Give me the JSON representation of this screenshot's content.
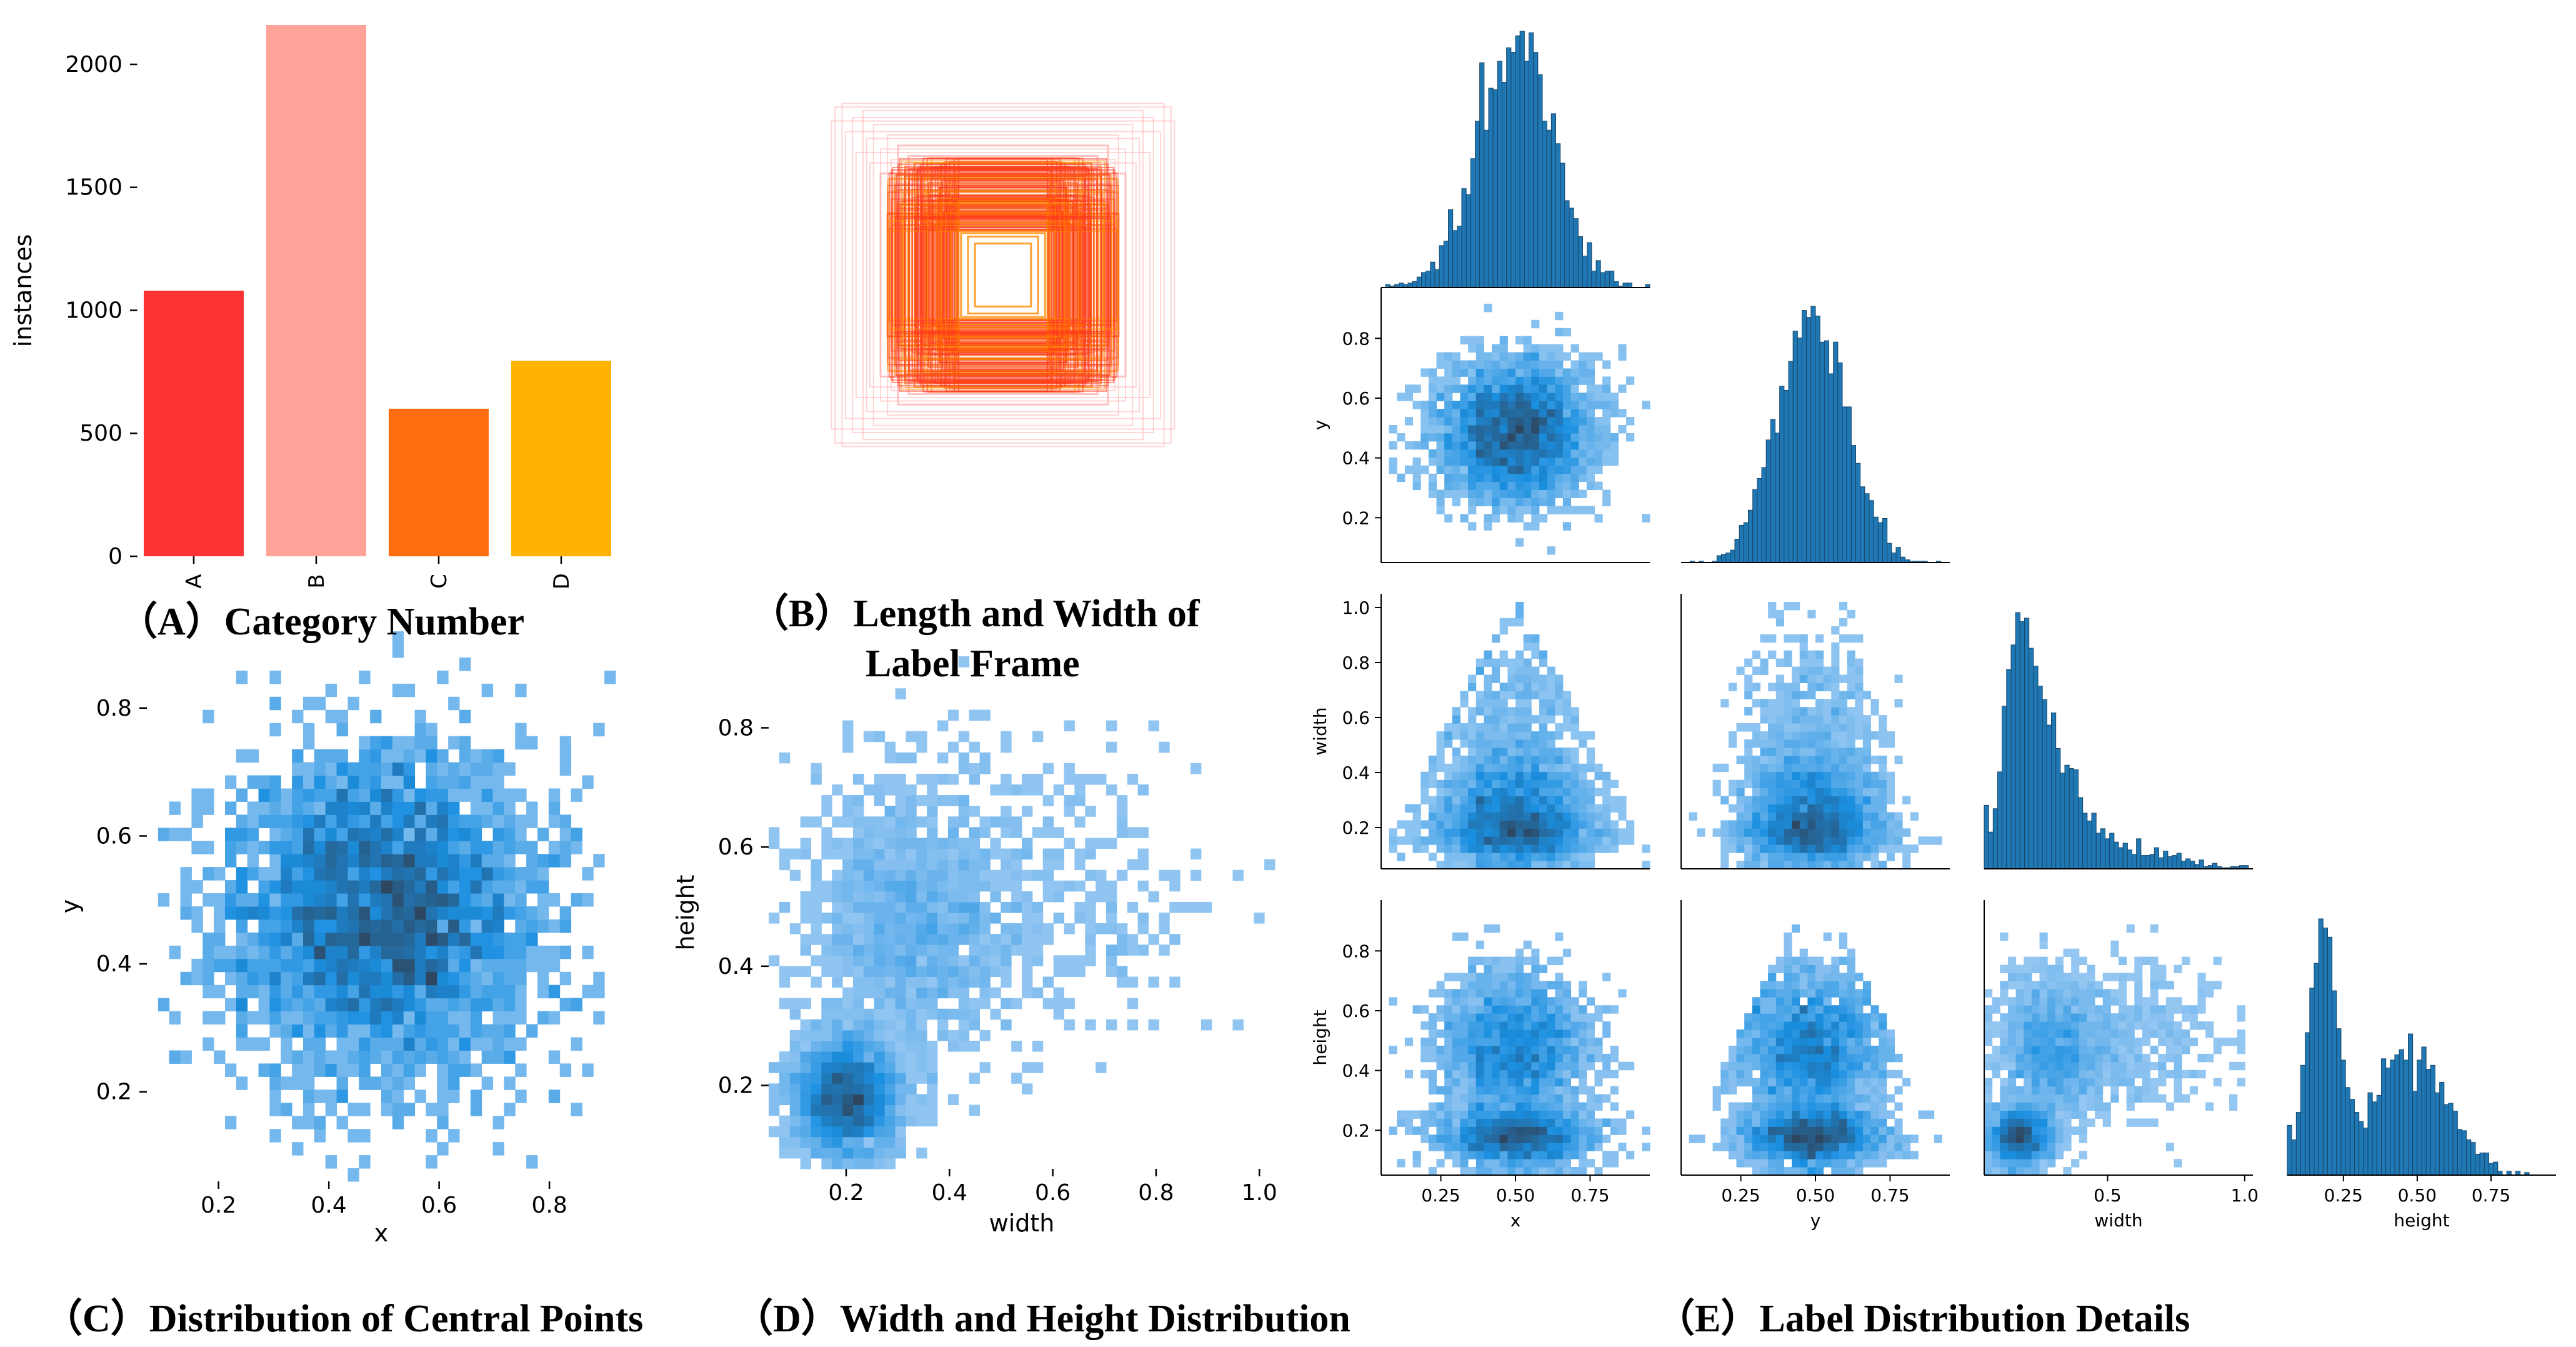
{
  "colors": {
    "heat_light": "#a9d0f5",
    "heat_mid": "#1a8fe0",
    "heat_dark": "#2e4660",
    "hist_bar": "#1f77b4",
    "hist_edge": "#17466a",
    "frame_outer": "#ffb3b3",
    "frame_inner": "#ff3a1a",
    "frame_core": "#ff8a00"
  },
  "captions": {
    "A": "（A）Category Number",
    "B_line1": "（B）Length and Width of",
    "B_line2": "Label Frame",
    "C": "（C）Distribution of Central Points",
    "D": "（D）Width and Height Distribution",
    "E": "（E）Label Distribution Details"
  },
  "chart_data": [
    {
      "id": "A",
      "type": "bar",
      "categories": [
        "A",
        "B",
        "C",
        "D"
      ],
      "values": [
        1080,
        2160,
        600,
        795
      ],
      "colors": [
        "#ff3333",
        "#ffa399",
        "#ff6d10",
        "#ffb300"
      ],
      "ylabel": "instances",
      "ylim": [
        0,
        2160
      ],
      "yticks": [
        0,
        500,
        1000,
        1500,
        2000
      ],
      "ytick_labels": [
        "0",
        "500",
        "1000",
        "1500",
        "2000"
      ]
    },
    {
      "id": "B",
      "type": "other",
      "description_visible": "overlapping label frames centred on origin",
      "frames": [
        {
          "w": 0.96,
          "h": 0.96
        },
        {
          "w": 0.92,
          "h": 0.98
        },
        {
          "w": 0.98,
          "h": 0.88
        },
        {
          "w": 0.86,
          "h": 0.9
        },
        {
          "w": 0.9,
          "h": 0.82
        },
        {
          "w": 0.8,
          "h": 0.94
        },
        {
          "w": 0.78,
          "h": 0.78
        },
        {
          "w": 0.74,
          "h": 0.86
        },
        {
          "w": 0.84,
          "h": 0.7
        },
        {
          "w": 0.7,
          "h": 0.72
        },
        {
          "w": 0.66,
          "h": 0.8
        },
        {
          "w": 0.76,
          "h": 0.64
        },
        {
          "w": 0.64,
          "h": 0.66
        },
        {
          "w": 0.6,
          "h": 0.74
        },
        {
          "w": 0.7,
          "h": 0.58
        },
        {
          "w": 0.58,
          "h": 0.6
        },
        {
          "w": 0.54,
          "h": 0.68
        },
        {
          "w": 0.62,
          "h": 0.52
        },
        {
          "w": 0.52,
          "h": 0.54
        },
        {
          "w": 0.48,
          "h": 0.62
        },
        {
          "w": 0.56,
          "h": 0.46
        },
        {
          "w": 0.46,
          "h": 0.48
        },
        {
          "w": 0.42,
          "h": 0.56
        },
        {
          "w": 0.5,
          "h": 0.4
        },
        {
          "w": 0.4,
          "h": 0.42
        },
        {
          "w": 0.36,
          "h": 0.5
        },
        {
          "w": 0.44,
          "h": 0.34
        },
        {
          "w": 0.34,
          "h": 0.36
        },
        {
          "w": 0.3,
          "h": 0.44
        },
        {
          "w": 0.38,
          "h": 0.3
        },
        {
          "w": 0.3,
          "h": 0.3
        },
        {
          "w": 0.26,
          "h": 0.34
        },
        {
          "w": 0.32,
          "h": 0.26
        },
        {
          "w": 0.24,
          "h": 0.24
        },
        {
          "w": 0.2,
          "h": 0.22
        },
        {
          "w": 0.16,
          "h": 0.18
        }
      ]
    },
    {
      "id": "C",
      "type": "heatmap",
      "xlabel": "x",
      "ylabel": "y",
      "xlim": [
        0.07,
        0.92
      ],
      "ylim": [
        0.06,
        0.92
      ],
      "xticks": [
        0.2,
        0.4,
        0.6,
        0.8
      ],
      "yticks": [
        0.2,
        0.4,
        0.6,
        0.8
      ],
      "xtick_labels": [
        "0.2",
        "0.4",
        "0.6",
        "0.8"
      ],
      "ytick_labels": [
        "0.2",
        "0.4",
        "0.6",
        "0.8"
      ],
      "distribution": {
        "mx": 0.5,
        "my": 0.48,
        "sx": 0.14,
        "sy": 0.13,
        "bins": 42
      }
    },
    {
      "id": "D",
      "type": "heatmap",
      "xlabel": "width",
      "ylabel": "height",
      "xlim": [
        0.05,
        1.03
      ],
      "ylim": [
        0.06,
        0.92
      ],
      "xticks": [
        0.2,
        0.4,
        0.6,
        0.8,
        1.0
      ],
      "yticks": [
        0.2,
        0.4,
        0.6,
        0.8
      ],
      "xtick_labels": [
        "0.2",
        "0.4",
        "0.6",
        "0.8",
        "1.0"
      ],
      "ytick_labels": [
        "0.2",
        "0.4",
        "0.6",
        "0.8"
      ],
      "clusters": [
        {
          "mx": 0.2,
          "my": 0.18,
          "sx": 0.05,
          "sy": 0.05,
          "w": 1.0
        },
        {
          "mx": 0.33,
          "my": 0.48,
          "sx": 0.1,
          "sy": 0.12,
          "w": 0.55
        },
        {
          "mx": 0.55,
          "my": 0.5,
          "sx": 0.18,
          "sy": 0.12,
          "w": 0.18
        }
      ]
    },
    {
      "id": "E",
      "type": "pairplot",
      "variables": [
        "x",
        "y",
        "width",
        "height"
      ],
      "xlims": {
        "x": [
          0.05,
          0.95
        ],
        "y": [
          0.05,
          0.95
        ],
        "width": [
          0.05,
          1.03
        ],
        "height": [
          0.06,
          0.97
        ]
      },
      "ylims": {
        "y": [
          0.05,
          0.97
        ],
        "width": [
          0.05,
          1.05
        ],
        "height": [
          0.05,
          0.97
        ]
      },
      "xticks": {
        "x": [
          "0.25",
          "0.50",
          "0.75"
        ],
        "y": [
          "0.25",
          "0.50",
          "0.75"
        ],
        "width": [
          "0.5",
          "1.0"
        ],
        "height": [
          "0.25",
          "0.50",
          "0.75"
        ]
      },
      "xtick_values": {
        "x": [
          0.25,
          0.5,
          0.75
        ],
        "y": [
          0.25,
          0.5,
          0.75
        ],
        "width": [
          0.5,
          1.0
        ],
        "height": [
          0.25,
          0.5,
          0.75
        ]
      },
      "yticks": {
        "y": [
          "0.2",
          "0.4",
          "0.6",
          "0.8"
        ],
        "width": [
          "0.2",
          "0.4",
          "0.6",
          "0.8",
          "1.0"
        ],
        "height": [
          "0.2",
          "0.4",
          "0.6",
          "0.8"
        ]
      },
      "ytick_values": {
        "y": [
          0.2,
          0.4,
          0.6,
          0.8
        ],
        "width": [
          0.2,
          0.4,
          0.6,
          0.8,
          1.0
        ],
        "height": [
          0.2,
          0.4,
          0.6,
          0.8
        ]
      },
      "histograms": {
        "x": {
          "mean": 0.52,
          "sd": 0.13,
          "peak": "sharp"
        },
        "y": {
          "mean": 0.49,
          "sd": 0.12,
          "peak": "sharp"
        },
        "width": {
          "mode": 0.22,
          "skew": "right",
          "tail_to": 0.98
        },
        "height": {
          "modes": [
            0.18,
            0.47
          ],
          "tail_to": 0.8
        }
      }
    }
  ]
}
